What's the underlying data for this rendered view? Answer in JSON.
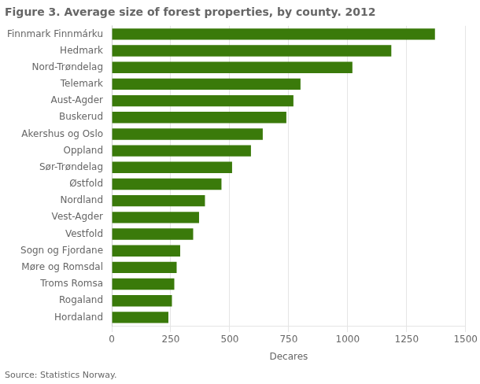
{
  "chart_data": {
    "type": "bar",
    "orientation": "horizontal",
    "title": "Figure 3. Average size of forest properties, by county. 2012",
    "xlabel": "Decares",
    "annotations": [
      "Source: Statistics Norway."
    ],
    "categories": [
      "Hordaland",
      "Rogaland",
      "Troms Romsa",
      "Møre og Romsdal",
      "Sogn og Fjordane",
      "Vestfold",
      "Vest-Agder",
      "Nordland",
      "Østfold",
      "Sør-Trøndelag",
      "Oppland",
      "Akershus og Oslo",
      "Buskerud",
      "Aust-Agder",
      "Telemark",
      "Nord-Trøndelag",
      "Hedmark",
      "Finnmark Finnmárku"
    ],
    "values": [
      240,
      255,
      265,
      275,
      290,
      345,
      370,
      395,
      465,
      510,
      590,
      640,
      740,
      770,
      800,
      1020,
      1185,
      1370
    ],
    "color": "#3a7a0a",
    "xlim": [
      0,
      1500
    ],
    "xticks": [
      0,
      250,
      500,
      750,
      1000,
      1250,
      1500
    ],
    "grid": true
  }
}
